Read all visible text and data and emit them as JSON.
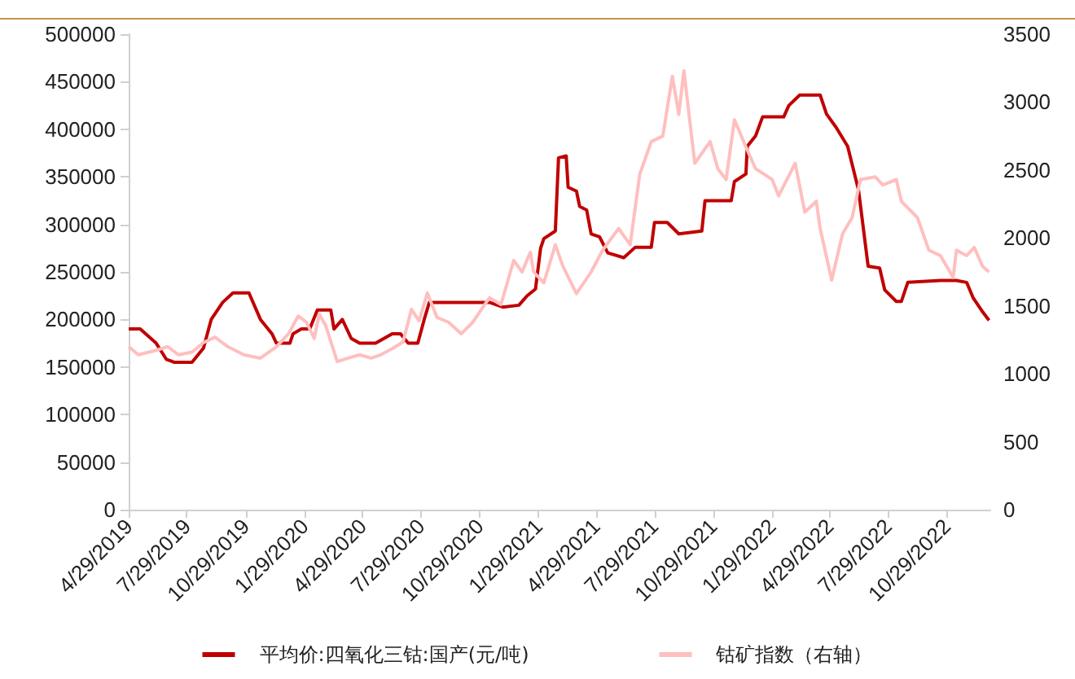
{
  "chart_data": {
    "type": "line",
    "xlim": [
      "2019-04-29",
      "2023-01-05"
    ],
    "xticks": [
      {
        "value": "2019-04-29",
        "label": "4/29/2019"
      },
      {
        "value": "2019-07-29",
        "label": "7/29/2019"
      },
      {
        "value": "2019-10-29",
        "label": "10/29/2019"
      },
      {
        "value": "2020-01-29",
        "label": "1/29/2020"
      },
      {
        "value": "2020-04-29",
        "label": "4/29/2020"
      },
      {
        "value": "2020-07-29",
        "label": "7/29/2020"
      },
      {
        "value": "2020-10-29",
        "label": "10/29/2020"
      },
      {
        "value": "2021-01-29",
        "label": "1/29/2021"
      },
      {
        "value": "2021-04-29",
        "label": "4/29/2021"
      },
      {
        "value": "2021-07-29",
        "label": "7/29/2021"
      },
      {
        "value": "2021-10-29",
        "label": "10/29/2021"
      },
      {
        "value": "2022-01-29",
        "label": "1/29/2022"
      },
      {
        "value": "2022-04-29",
        "label": "4/29/2022"
      },
      {
        "value": "2022-07-29",
        "label": "7/29/2022"
      },
      {
        "value": "2022-10-29",
        "label": "10/29/2022"
      }
    ],
    "ylim": [
      0,
      500000
    ],
    "yticks": [
      0,
      50000,
      100000,
      150000,
      200000,
      250000,
      300000,
      350000,
      400000,
      450000,
      500000
    ],
    "y2lim": [
      0,
      3500
    ],
    "y2ticks": [
      0,
      500,
      1000,
      1500,
      2000,
      2500,
      3000,
      3500
    ],
    "grid": false,
    "legend": "bottom",
    "marker": "none",
    "line_style": "solid",
    "series": [
      {
        "name": "平均价:四氧化三钴:国产(元/吨)",
        "color": "#c00000",
        "x": [
          "2019-04-29",
          "2019-05-17",
          "2019-06-11",
          "2019-06-27",
          "2019-07-09",
          "2019-08-06",
          "2019-08-24",
          "2019-09-05",
          "2019-09-23",
          "2019-10-09",
          "2019-11-03",
          "2019-11-21",
          "2019-12-09",
          "2019-12-16",
          "2020-01-06",
          "2020-01-11",
          "2020-01-24",
          "2020-02-06",
          "2020-02-18",
          "2020-03-10",
          "2020-03-15",
          "2020-03-28",
          "2020-04-11",
          "2020-04-24",
          "2020-05-19",
          "2020-06-01",
          "2020-06-14",
          "2020-06-27",
          "2020-07-09",
          "2020-07-24",
          "2020-08-03",
          "2020-08-11",
          "2020-11-13",
          "2020-12-04",
          "2020-12-29",
          "2021-01-11",
          "2021-01-24",
          "2021-02-01",
          "2021-02-06",
          "2021-02-24",
          "2021-03-01",
          "2021-03-13",
          "2021-03-16",
          "2021-03-29",
          "2021-04-03",
          "2021-04-14",
          "2021-04-21",
          "2021-05-04",
          "2021-05-17",
          "2021-06-11",
          "2021-06-29",
          "2021-07-24",
          "2021-07-29",
          "2021-08-18",
          "2021-09-05",
          "2021-10-11",
          "2021-10-16",
          "2021-11-26",
          "2021-12-01",
          "2021-12-19",
          "2021-12-21",
          "2022-01-03",
          "2022-01-14",
          "2022-02-16",
          "2022-02-24",
          "2022-03-13",
          "2022-04-14",
          "2022-04-24",
          "2022-05-09",
          "2022-05-27",
          "2022-06-13",
          "2022-06-28",
          "2022-07-16",
          "2022-07-24",
          "2022-08-11",
          "2022-08-19",
          "2022-08-29",
          "2022-10-19",
          "2022-11-13",
          "2022-11-29",
          "2022-12-09",
          "2022-12-24",
          "2023-01-03"
        ],
        "values": [
          190000,
          190000,
          175000,
          158000,
          155000,
          155000,
          170000,
          200000,
          218000,
          228000,
          228000,
          200000,
          185000,
          175000,
          175000,
          185000,
          190000,
          190000,
          210000,
          210000,
          190000,
          200000,
          180000,
          175000,
          175000,
          180000,
          185000,
          185000,
          175000,
          175000,
          200000,
          218000,
          218000,
          213000,
          215000,
          225000,
          232000,
          275000,
          285000,
          293000,
          370000,
          372000,
          339000,
          335000,
          319000,
          315000,
          290000,
          287000,
          270000,
          265000,
          276000,
          276000,
          302000,
          302000,
          290000,
          293000,
          325000,
          325000,
          345000,
          353000,
          382000,
          393000,
          413000,
          413000,
          425000,
          436000,
          436000,
          416000,
          402000,
          382000,
          336000,
          256000,
          254000,
          231000,
          219000,
          219000,
          239000,
          241000,
          241000,
          239000,
          223000,
          208000,
          199000
        ]
      },
      {
        "name": "钴矿指数（右轴）",
        "color": "#ffbfbf",
        "axis": "y2",
        "x": [
          "2019-04-29",
          "2019-05-14",
          "2019-06-09",
          "2019-06-29",
          "2019-07-16",
          "2019-08-06",
          "2019-08-24",
          "2019-09-11",
          "2019-10-01",
          "2019-10-26",
          "2019-11-21",
          "2019-12-16",
          "2020-01-04",
          "2020-01-19",
          "2020-02-01",
          "2020-02-13",
          "2020-02-21",
          "2020-03-02",
          "2020-03-20",
          "2020-04-06",
          "2020-04-24",
          "2020-05-12",
          "2020-05-27",
          "2020-06-14",
          "2020-07-01",
          "2020-07-14",
          "2020-07-26",
          "2020-08-08",
          "2020-08-23",
          "2020-09-10",
          "2020-09-30",
          "2020-10-18",
          "2020-11-13",
          "2020-12-01",
          "2020-12-21",
          "2021-01-03",
          "2021-01-16",
          "2021-01-21",
          "2021-02-06",
          "2021-02-24",
          "2021-03-08",
          "2021-03-29",
          "2021-04-21",
          "2021-05-09",
          "2021-06-03",
          "2021-06-21",
          "2021-07-06",
          "2021-07-24",
          "2021-08-11",
          "2021-08-26",
          "2021-09-05",
          "2021-09-13",
          "2021-09-30",
          "2021-10-24",
          "2021-11-05",
          "2021-11-18",
          "2021-12-01",
          "2021-12-19",
          "2022-01-03",
          "2022-01-29",
          "2022-02-08",
          "2022-03-06",
          "2022-03-21",
          "2022-04-08",
          "2022-04-14",
          "2022-05-02",
          "2022-05-19",
          "2022-06-03",
          "2022-06-16",
          "2022-07-09",
          "2022-07-21",
          "2022-08-11",
          "2022-08-19",
          "2022-09-13",
          "2022-10-01",
          "2022-10-19",
          "2022-11-08",
          "2022-11-13",
          "2022-11-29",
          "2022-12-11",
          "2022-12-24",
          "2023-01-03"
        ],
        "values": [
          1200,
          1140,
          1170,
          1200,
          1140,
          1160,
          1230,
          1270,
          1200,
          1140,
          1115,
          1200,
          1295,
          1425,
          1380,
          1260,
          1440,
          1355,
          1090,
          1115,
          1140,
          1115,
          1140,
          1185,
          1235,
          1475,
          1390,
          1595,
          1415,
          1380,
          1295,
          1380,
          1560,
          1510,
          1835,
          1750,
          1895,
          1750,
          1670,
          1950,
          1790,
          1590,
          1750,
          1910,
          2070,
          1950,
          2470,
          2710,
          2750,
          3190,
          2910,
          3230,
          2550,
          2710,
          2510,
          2430,
          2870,
          2670,
          2510,
          2430,
          2310,
          2550,
          2190,
          2270,
          2070,
          1690,
          2030,
          2150,
          2430,
          2450,
          2390,
          2430,
          2270,
          2150,
          1910,
          1870,
          1710,
          1910,
          1870,
          1930,
          1790,
          1750
        ]
      }
    ]
  }
}
